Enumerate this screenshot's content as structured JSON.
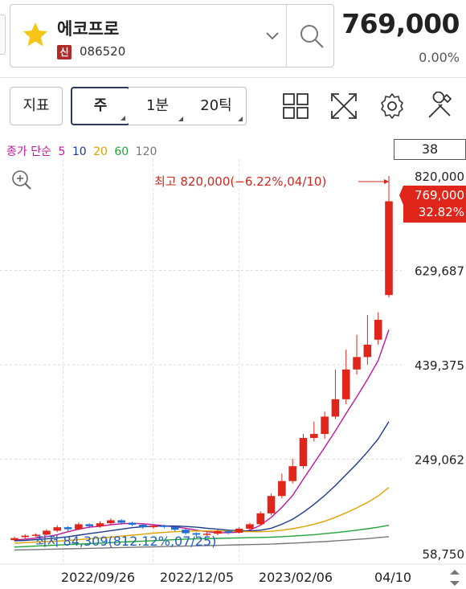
{
  "stock": {
    "name": "에코프로",
    "badge": "신",
    "code": "086520",
    "price": "769,000",
    "change": "0.00%",
    "favorite": true
  },
  "toolbar": {
    "indicator_label": "지표",
    "period_label": "주",
    "minute_label": "1분",
    "tick_label": "20틱",
    "icons": [
      "grid-icon",
      "fullscreen-icon",
      "gear-icon",
      "tools-icon"
    ]
  },
  "chart": {
    "count": "38",
    "ma_legend": {
      "prefix": "종가 단순",
      "periods": [
        {
          "label": "5",
          "color": "#c2189b"
        },
        {
          "label": "10",
          "color": "#1e3a8a"
        },
        {
          "label": "20",
          "color": "#e0a100"
        },
        {
          "label": "60",
          "color": "#22a33a"
        },
        {
          "label": "120",
          "color": "#777777"
        }
      ]
    },
    "high_annotation": "최고 820,000(−6.22%,04/10)",
    "low_annotation": "최저 84,309(812.12%,07/25)",
    "price_labels": [
      "820,000",
      "629,687",
      "439,375",
      "249,062",
      "58,750"
    ],
    "current_price_tag": {
      "price": "769,000",
      "pct": "32.82%"
    },
    "date_labels": [
      "2022/09/26",
      "2022/12/05",
      "2023/02/06",
      "04/10"
    ],
    "colors": {
      "up": "#e0251b",
      "down": "#1f6fd1",
      "label_red": "#d0281e",
      "label_blue": "#1f5fbf"
    }
  },
  "chart_data": {
    "type": "candlestick",
    "title": "",
    "y_ticks": [
      820000,
      629687,
      439375,
      249062,
      58750
    ],
    "ylim": [
      58750,
      820000
    ],
    "x_ticks": [
      "2022/09/26",
      "2022/12/05",
      "2023/02/06",
      "04/10"
    ],
    "candles": [
      {
        "o": 86000,
        "c": 90000,
        "h": 93000,
        "l": 84309
      },
      {
        "o": 92000,
        "c": 95000,
        "h": 98000,
        "l": 89000
      },
      {
        "o": 95000,
        "c": 97000,
        "h": 100000,
        "l": 92000
      },
      {
        "o": 97000,
        "c": 105000,
        "h": 108000,
        "l": 95000
      },
      {
        "o": 105000,
        "c": 112000,
        "h": 116000,
        "l": 102000
      },
      {
        "o": 112000,
        "c": 108000,
        "h": 114000,
        "l": 104000
      },
      {
        "o": 108000,
        "c": 118000,
        "h": 122000,
        "l": 106000
      },
      {
        "o": 118000,
        "c": 114000,
        "h": 120000,
        "l": 110000
      },
      {
        "o": 114000,
        "c": 120000,
        "h": 124000,
        "l": 111000
      },
      {
        "o": 120000,
        "c": 126000,
        "h": 130000,
        "l": 117000
      },
      {
        "o": 126000,
        "c": 121000,
        "h": 128000,
        "l": 117000
      },
      {
        "o": 121000,
        "c": 117000,
        "h": 123000,
        "l": 114000
      },
      {
        "o": 117000,
        "c": 112000,
        "h": 119000,
        "l": 109000
      },
      {
        "o": 112000,
        "c": 115000,
        "h": 118000,
        "l": 109000
      },
      {
        "o": 115000,
        "c": 113000,
        "h": 117000,
        "l": 110000
      },
      {
        "o": 113000,
        "c": 107000,
        "h": 115000,
        "l": 104000
      },
      {
        "o": 107000,
        "c": 100000,
        "h": 109000,
        "l": 97000
      },
      {
        "o": 100000,
        "c": 97000,
        "h": 102000,
        "l": 93000
      },
      {
        "o": 97000,
        "c": 99000,
        "h": 102000,
        "l": 94000
      },
      {
        "o": 99000,
        "c": 104000,
        "h": 107000,
        "l": 96000
      },
      {
        "o": 104000,
        "c": 101000,
        "h": 106000,
        "l": 98000
      },
      {
        "o": 101000,
        "c": 109000,
        "h": 112000,
        "l": 99000
      },
      {
        "o": 109000,
        "c": 118000,
        "h": 121000,
        "l": 106000
      },
      {
        "o": 118000,
        "c": 140000,
        "h": 144000,
        "l": 116000
      },
      {
        "o": 140000,
        "c": 175000,
        "h": 180000,
        "l": 136000
      },
      {
        "o": 175000,
        "c": 205000,
        "h": 220000,
        "l": 170000
      },
      {
        "o": 205000,
        "c": 235000,
        "h": 250000,
        "l": 200000
      },
      {
        "o": 235000,
        "c": 292000,
        "h": 300000,
        "l": 230000
      },
      {
        "o": 292000,
        "c": 300000,
        "h": 325000,
        "l": 285000
      },
      {
        "o": 300000,
        "c": 335000,
        "h": 345000,
        "l": 290000
      },
      {
        "o": 335000,
        "c": 370000,
        "h": 430000,
        "l": 330000
      },
      {
        "o": 370000,
        "c": 430000,
        "h": 470000,
        "l": 360000
      },
      {
        "o": 430000,
        "c": 455000,
        "h": 500000,
        "l": 420000
      },
      {
        "o": 455000,
        "c": 480000,
        "h": 540000,
        "l": 440000
      },
      {
        "o": 490000,
        "c": 530000,
        "h": 545000,
        "l": 480000
      },
      {
        "o": 580000,
        "c": 769000,
        "h": 820000,
        "l": 575000
      }
    ],
    "moving_averages": [
      {
        "name": "5",
        "color": "#c2189b",
        "values": [
          86000,
          88000,
          90000,
          93000,
          97000,
          103000,
          108000,
          112000,
          114000,
          117000,
          119000,
          120000,
          119000,
          117000,
          115000,
          113000,
          110000,
          106000,
          103000,
          101000,
          101000,
          102000,
          106000,
          116000,
          132000,
          152000,
          176000,
          209000,
          241000,
          273000,
          306000,
          341000,
          375000,
          410000,
          448000,
          510000
        ]
      },
      {
        "name": "10",
        "color": "#1e3a8a",
        "values": [
          84500,
          85500,
          87000,
          88500,
          90500,
          93000,
          96000,
          99000,
          102000,
          105000,
          108000,
          111000,
          113000,
          114000,
          114500,
          114500,
          113500,
          112000,
          110000,
          108000,
          106000,
          105000,
          104500,
          106000,
          110000,
          118000,
          128000,
          142000,
          158000,
          176000,
          196000,
          218000,
          240000,
          264000,
          290000,
          325000
        ]
      },
      {
        "name": "20",
        "color": "#e0a100",
        "values": [
          80000,
          81000,
          82000,
          83000,
          84000,
          85500,
          87000,
          88500,
          90000,
          92000,
          94000,
          96000,
          98000,
          100000,
          101500,
          103000,
          104000,
          104500,
          104500,
          104500,
          104000,
          103500,
          103000,
          103000,
          104000,
          106000,
          109000,
          113000,
          118000,
          124000,
          132000,
          141000,
          151000,
          162000,
          175000,
          192000
        ]
      },
      {
        "name": "60",
        "color": "#22a33a",
        "values": [
          72000,
          73000,
          74000,
          75000,
          76000,
          77000,
          78000,
          79000,
          80000,
          81000,
          82000,
          83000,
          84000,
          85000,
          86000,
          87000,
          88000,
          88500,
          89000,
          89500,
          90000,
          90500,
          91000,
          91500,
          92000,
          93000,
          94000,
          95500,
          97000,
          99000,
          101000,
          103500,
          106000,
          109000,
          112000,
          116000
        ]
      },
      {
        "name": "120",
        "color": "#777777",
        "values": [
          66000,
          66500,
          67000,
          67500,
          68000,
          68500,
          69000,
          69500,
          70000,
          70500,
          71000,
          71500,
          72000,
          72500,
          73000,
          73500,
          74000,
          74500,
          75000,
          75500,
          76000,
          76500,
          77000,
          77500,
          78000,
          79000,
          80000,
          81000,
          82000,
          83000,
          84500,
          86000,
          87500,
          89000,
          91000,
          93000
        ]
      }
    ]
  }
}
